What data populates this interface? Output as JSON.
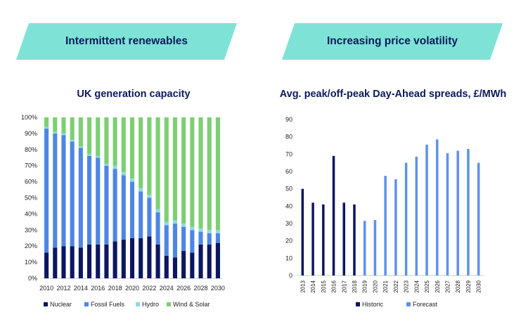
{
  "banners": {
    "left": "Intermittent renewables",
    "right": "Increasing price volatility"
  },
  "colors": {
    "banner": "#7ee3d6",
    "title": "#0d1a5c",
    "nuclear": "#0c1660",
    "fossil": "#4e86e4",
    "hydro": "#8fd9e6",
    "wind_solar": "#7ccf72",
    "historic": "#0c1660",
    "forecast": "#5d92e8"
  },
  "chart_data": [
    {
      "type": "bar",
      "stacked": true,
      "title": "UK generation capacity",
      "categories": [
        "2010",
        "2011",
        "2012",
        "2013",
        "2014",
        "2015",
        "2016",
        "2017",
        "2018",
        "2019",
        "2020",
        "2021",
        "2022",
        "2023",
        "2024",
        "2025",
        "2026",
        "2027",
        "2028",
        "2029",
        "2030"
      ],
      "x_tick_labels": [
        "2010",
        "2012",
        "2014",
        "2016",
        "2018",
        "2020",
        "2022",
        "2024",
        "2026",
        "2028",
        "2030"
      ],
      "y_tick_labels": [
        "0%",
        "10%",
        "20%",
        "30%",
        "40%",
        "50%",
        "60%",
        "70%",
        "80%",
        "90%",
        "100%"
      ],
      "ylim": [
        0,
        100
      ],
      "series": [
        {
          "name": "Nuclear",
          "values": [
            16,
            19,
            20,
            20,
            19,
            21,
            21,
            21,
            23,
            24,
            25,
            25,
            26,
            21,
            14,
            13,
            17,
            16,
            21,
            21,
            22
          ]
        },
        {
          "name": "Fossil Fuels",
          "values": [
            77,
            71,
            69,
            65,
            62,
            55,
            54,
            49,
            45,
            40,
            35,
            29,
            24,
            20,
            19,
            21,
            15,
            14,
            8,
            7,
            6
          ]
        },
        {
          "name": "Hydro",
          "values": [
            1,
            1,
            1,
            1,
            1,
            1,
            1,
            1,
            2,
            2,
            2,
            2,
            2,
            2,
            2,
            2,
            2,
            2,
            2,
            2,
            2
          ]
        },
        {
          "name": "Wind & Solar",
          "values": [
            6,
            9,
            10,
            14,
            18,
            23,
            24,
            29,
            30,
            34,
            38,
            44,
            48,
            57,
            65,
            64,
            66,
            68,
            69,
            70,
            70
          ]
        }
      ],
      "legend": [
        "Nuclear",
        "Fossil Fuels",
        "Hydro",
        "Wind & Solar"
      ],
      "legend_position": "bottom"
    },
    {
      "type": "bar",
      "title": "Avg. peak/off-peak Day-Ahead spreads, £/MWh",
      "categories": [
        "2013",
        "2014",
        "2015",
        "2016",
        "2017",
        "2018",
        "2019",
        "2020",
        "2021",
        "2022",
        "2023",
        "2024",
        "2025",
        "2026",
        "2027",
        "2028",
        "2029",
        "2030"
      ],
      "y_tick_labels": [
        "0",
        "10",
        "20",
        "30",
        "40",
        "50",
        "60",
        "70",
        "80",
        "90"
      ],
      "ylim": [
        0,
        90
      ],
      "series": [
        {
          "name": "Historic",
          "values": [
            50,
            42,
            41,
            69,
            42,
            41,
            null,
            null,
            null,
            null,
            null,
            null,
            null,
            null,
            null,
            null,
            null,
            null
          ]
        },
        {
          "name": "Forecast",
          "values": [
            null,
            null,
            null,
            null,
            null,
            null,
            31.5,
            32,
            57.5,
            55.5,
            65,
            68.5,
            75.5,
            78.5,
            70.5,
            72,
            73,
            65
          ]
        }
      ],
      "legend": [
        "Historic",
        "Forecast"
      ],
      "legend_position": "bottom"
    }
  ]
}
